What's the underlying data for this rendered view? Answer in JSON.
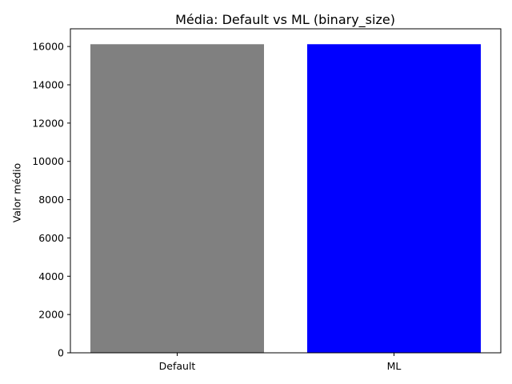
{
  "chart_data": {
    "type": "bar",
    "title": "Média: Default vs ML (binary_size)",
    "xlabel": "",
    "ylabel": "Valor médio",
    "categories": [
      "Default",
      "ML"
    ],
    "values": [
      16120,
      16120
    ],
    "colors": [
      "#808080",
      "#0000ff"
    ],
    "ylim": [
      0,
      16925
    ],
    "yticks": [
      0,
      2000,
      4000,
      6000,
      8000,
      10000,
      12000,
      14000,
      16000
    ],
    "grid": false,
    "legend": "none"
  }
}
